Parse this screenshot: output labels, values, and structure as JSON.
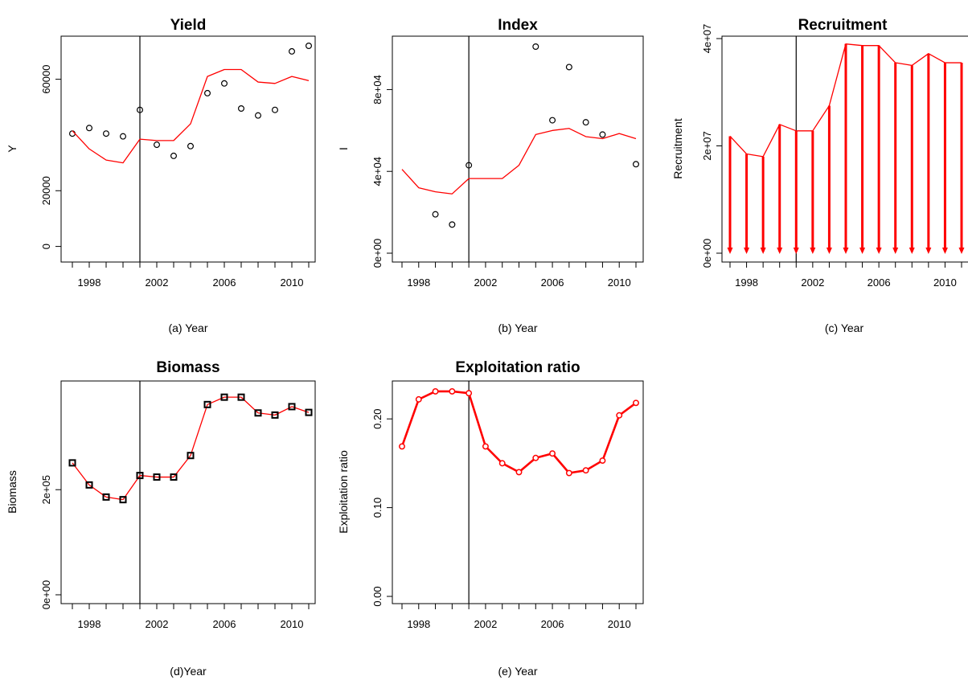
{
  "chart_data": [
    {
      "id": "a",
      "type": "line",
      "title": "Yield",
      "xlabel": "(a) Year",
      "ylabel": "Y",
      "xlim": [
        1996.5,
        2011.5
      ],
      "ylim": [
        -3000,
        72000
      ],
      "xticks": [
        1998,
        2002,
        2006,
        2010
      ],
      "yticks": [
        0,
        20000,
        60000
      ],
      "ytick_labels": [
        "0",
        "20000",
        "60000"
      ],
      "vline": 2001,
      "series": [
        {
          "style": "points",
          "color": "#000000",
          "x": [
            1997,
            1998,
            1999,
            2000,
            2001,
            2002,
            2003,
            2004,
            2005,
            2006,
            2007,
            2008,
            2009,
            2010,
            2011
          ],
          "y": [
            40500,
            42500,
            40500,
            39500,
            49000,
            36500,
            32500,
            36000,
            55000,
            58500,
            49500,
            47000,
            49000,
            70000,
            72000
          ]
        },
        {
          "style": "line",
          "color": "#ff0000",
          "x": [
            1997,
            1998,
            1999,
            2000,
            2001,
            2002,
            2003,
            2004,
            2005,
            2006,
            2007,
            2008,
            2009,
            2010,
            2011
          ],
          "y": [
            41500,
            35000,
            31000,
            30000,
            38500,
            38000,
            38000,
            44000,
            61000,
            63500,
            63500,
            59000,
            58500,
            61000,
            59500
          ]
        }
      ]
    },
    {
      "id": "b",
      "type": "line",
      "title": "Index",
      "xlabel": "(b) Year",
      "ylabel": "I",
      "xlim": [
        1996.5,
        2011.5
      ],
      "ylim": [
        0,
        101000
      ],
      "xticks": [
        1998,
        2002,
        2006,
        2010
      ],
      "yticks": [
        0,
        40000,
        80000
      ],
      "ytick_labels": [
        "0e+00",
        "4e+04",
        "8e+04"
      ],
      "vline": 2001,
      "series": [
        {
          "style": "points",
          "color": "#000000",
          "x": [
            1999,
            2000,
            2001,
            2005,
            2006,
            2007,
            2008,
            2009,
            2011
          ],
          "y": [
            19000,
            14000,
            43000,
            101000,
            65000,
            91000,
            64000,
            58000,
            43500
          ]
        },
        {
          "style": "line",
          "color": "#ff0000",
          "x": [
            1997,
            1998,
            1999,
            2000,
            2001,
            2002,
            2003,
            2004,
            2005,
            2006,
            2007,
            2008,
            2009,
            2010,
            2011
          ],
          "y": [
            41000,
            32000,
            30000,
            29000,
            36500,
            36500,
            36500,
            43000,
            58000,
            60000,
            61000,
            57000,
            56000,
            58500,
            56000
          ]
        }
      ]
    },
    {
      "id": "c",
      "type": "line",
      "title": "Recruitment",
      "xlabel": "(c) Year",
      "ylabel": "Recruitment",
      "xlim": [
        1996.5,
        2011.5
      ],
      "ylim": [
        0,
        40000000
      ],
      "xticks": [
        1998,
        2002,
        2006,
        2010
      ],
      "yticks": [
        0,
        20000000,
        40000000
      ],
      "ytick_labels": [
        "0e+00",
        "2e+07",
        "4e+07"
      ],
      "vline": 2001,
      "series": [
        {
          "style": "line-with-arrows",
          "color": "#ff0000",
          "x": [
            1997,
            1998,
            1999,
            2000,
            2001,
            2002,
            2003,
            2004,
            2005,
            2006,
            2007,
            2008,
            2009,
            2010,
            2011
          ],
          "y": [
            21800000,
            18500000,
            18000000,
            24000000,
            22800000,
            22800000,
            27500000,
            39000000,
            38700000,
            38700000,
            35500000,
            35000000,
            37200000,
            35500000,
            35500000
          ]
        }
      ]
    },
    {
      "id": "d",
      "type": "line",
      "title": "Biomass",
      "xlabel": "(d)Year",
      "ylabel": "Biomass",
      "xlim": [
        1996.5,
        2011.5
      ],
      "ylim": [
        0,
        390000
      ],
      "xticks": [
        1998,
        2002,
        2006,
        2010
      ],
      "yticks": [
        0,
        200000
      ],
      "ytick_labels": [
        "0e+00",
        "2e+05"
      ],
      "vline": 2001,
      "series": [
        {
          "style": "line-with-squares",
          "color": "#ff0000",
          "marker_color": "#000000",
          "x": [
            1997,
            1998,
            1999,
            2000,
            2001,
            2002,
            2003,
            2004,
            2005,
            2006,
            2007,
            2008,
            2009,
            2010,
            2011
          ],
          "y": [
            251000,
            209000,
            186000,
            181000,
            227000,
            224000,
            224000,
            265000,
            362000,
            376000,
            376000,
            346000,
            342000,
            358000,
            347000
          ]
        }
      ]
    },
    {
      "id": "e",
      "type": "line",
      "title": "Exploitation ratio",
      "xlabel": "(e) Year",
      "ylabel": "Exploitation ratio",
      "xlim": [
        1996.5,
        2011.5
      ],
      "ylim": [
        0,
        0.24
      ],
      "xticks": [
        1998,
        2002,
        2006,
        2010
      ],
      "yticks": [
        0,
        0.1,
        0.2
      ],
      "ytick_labels": [
        "0.00",
        "0.10",
        "0.20"
      ],
      "vline": 2001,
      "series": [
        {
          "style": "line-with-circles",
          "color": "#ff0000",
          "x": [
            1997,
            1998,
            1999,
            2000,
            2001,
            2002,
            2003,
            2004,
            2005,
            2006,
            2007,
            2008,
            2009,
            2010,
            2011
          ],
          "y": [
            0.169,
            0.222,
            0.231,
            0.231,
            0.229,
            0.169,
            0.15,
            0.14,
            0.156,
            0.161,
            0.139,
            0.142,
            0.153,
            0.204,
            0.218
          ]
        }
      ]
    }
  ]
}
